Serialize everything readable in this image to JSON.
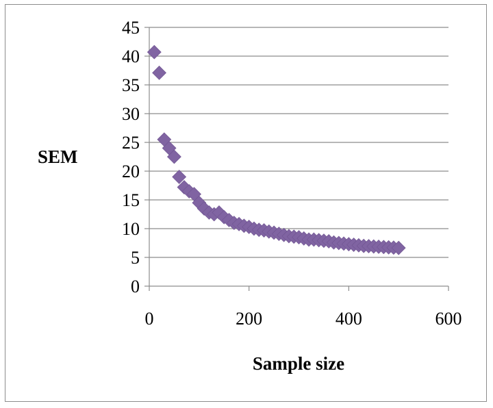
{
  "chart_data": {
    "type": "scatter",
    "title": "",
    "xlabel": "Sample size",
    "ylabel": "SEM",
    "xlim": [
      0,
      600
    ],
    "ylim": [
      0,
      45
    ],
    "xticks": [
      0,
      200,
      400,
      600
    ],
    "yticks": [
      0,
      5,
      10,
      15,
      20,
      25,
      30,
      35,
      40,
      45
    ],
    "grid": "horizontal",
    "legend": "none",
    "marker": "diamond",
    "color": "#8064a2",
    "series": [
      {
        "x": [
          10,
          20,
          30,
          40,
          50,
          60,
          70,
          80,
          90,
          100,
          110,
          120,
          130,
          140,
          150,
          160,
          170,
          180,
          190,
          200,
          210,
          220,
          230,
          240,
          250,
          260,
          270,
          280,
          290,
          300,
          310,
          320,
          330,
          340,
          350,
          360,
          370,
          380,
          390,
          400,
          410,
          420,
          430,
          440,
          450,
          460,
          470,
          480,
          490,
          500
        ],
        "y": [
          40.7,
          37.1,
          25.5,
          24.0,
          22.5,
          19.0,
          17.2,
          16.5,
          16.0,
          14.5,
          13.5,
          12.8,
          12.5,
          12.8,
          12.0,
          11.5,
          11.0,
          10.8,
          10.5,
          10.3,
          10.0,
          9.8,
          9.7,
          9.5,
          9.3,
          9.1,
          8.9,
          8.7,
          8.6,
          8.5,
          8.3,
          8.1,
          8.1,
          8.0,
          7.9,
          7.8,
          7.6,
          7.5,
          7.4,
          7.3,
          7.2,
          7.1,
          7.0,
          6.95,
          6.9,
          6.85,
          6.8,
          6.75,
          6.7,
          6.65
        ]
      }
    ]
  }
}
